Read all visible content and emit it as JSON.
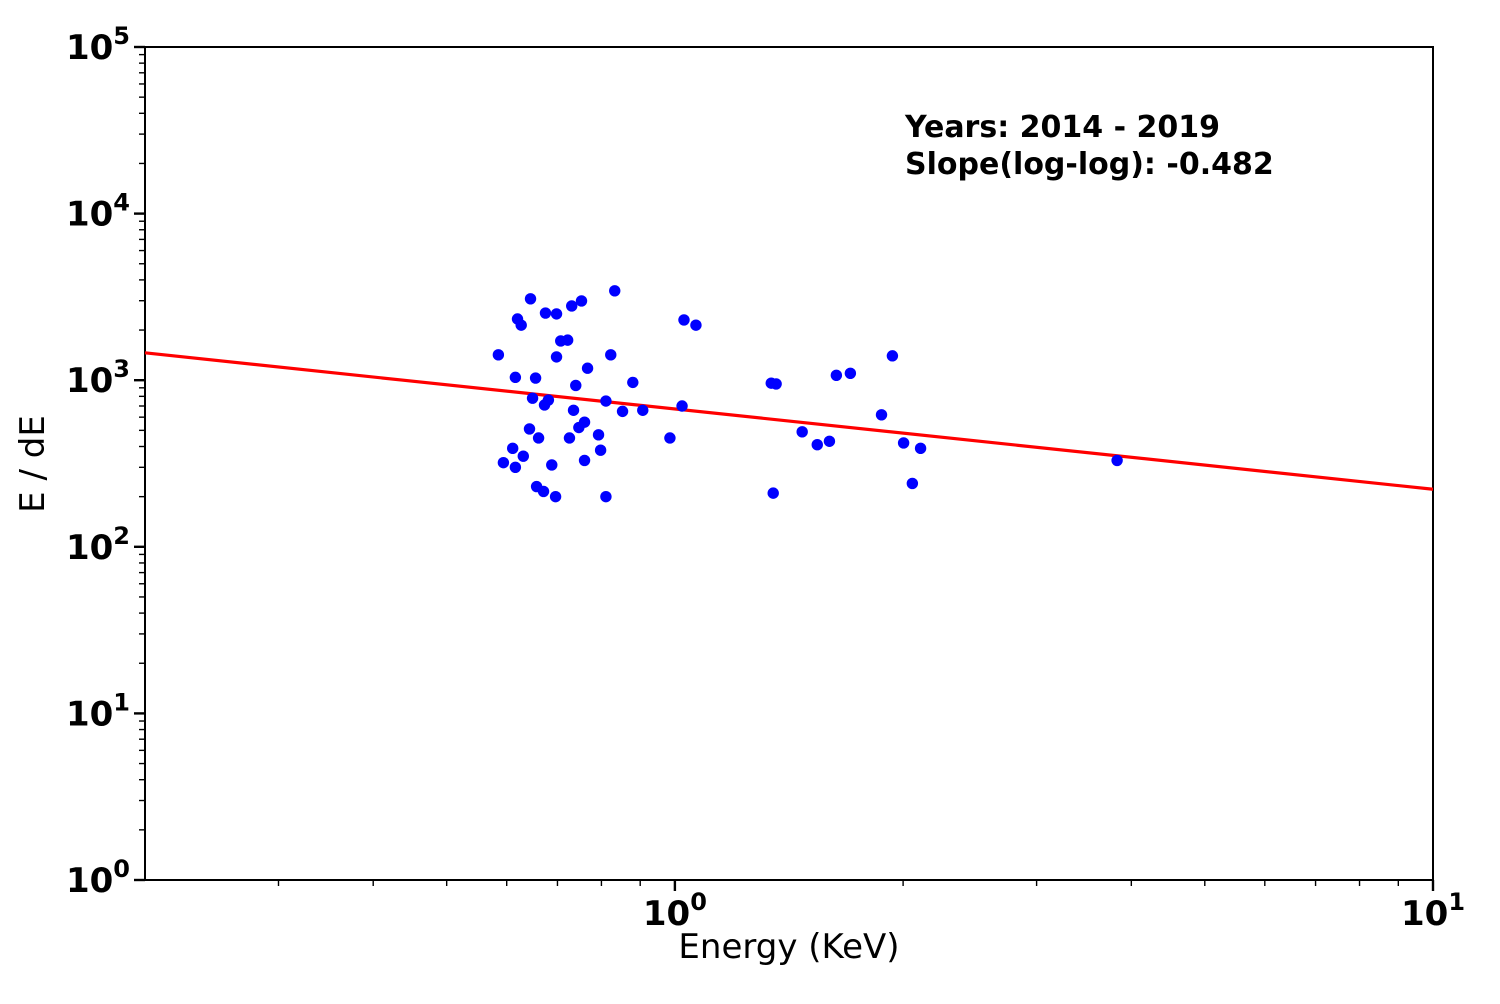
{
  "figure": {
    "background": "#ffffff"
  },
  "chart_data": {
    "type": "scatter",
    "title": "",
    "xlabel": "Energy (KeV)",
    "ylabel": "E / dE",
    "x_scale": "log",
    "y_scale": "log",
    "xlim": [
      0.2,
      10
    ],
    "ylim": [
      1,
      100000
    ],
    "grid": false,
    "legend_position": "none",
    "marker_color": "#0000ff",
    "fit_line_color": "#ff0000",
    "axis_color": "#000000",
    "x_major_ticks": [
      1,
      10
    ],
    "y_major_ticks": [
      1,
      10,
      100,
      1000,
      10000,
      100000
    ],
    "annotation": {
      "line1": "Years: 2014 - 2019",
      "line2": "Slope(log-log): -0.482"
    },
    "fit_line": {
      "slope_loglog": -0.482,
      "value_at_1kev": 672,
      "x_start": 0.2,
      "x_end": 10
    },
    "points": [
      [
        0.833,
        3440
      ],
      [
        0.645,
        3080
      ],
      [
        0.753,
        2990
      ],
      [
        0.731,
        2790
      ],
      [
        0.675,
        2530
      ],
      [
        0.698,
        2500
      ],
      [
        0.62,
        2330
      ],
      [
        0.627,
        2140
      ],
      [
        1.028,
        2300
      ],
      [
        1.066,
        2140
      ],
      [
        0.707,
        1720
      ],
      [
        0.722,
        1740
      ],
      [
        0.585,
        1420
      ],
      [
        0.698,
        1380
      ],
      [
        0.823,
        1420
      ],
      [
        0.767,
        1180
      ],
      [
        0.616,
        1040
      ],
      [
        0.655,
        1030
      ],
      [
        0.74,
        930
      ],
      [
        0.88,
        970
      ],
      [
        0.649,
        780
      ],
      [
        0.673,
        710
      ],
      [
        0.681,
        760
      ],
      [
        0.811,
        750
      ],
      [
        0.735,
        660
      ],
      [
        0.853,
        650
      ],
      [
        0.907,
        660
      ],
      [
        1.022,
        700
      ],
      [
        0.76,
        560
      ],
      [
        0.747,
        520
      ],
      [
        0.643,
        510
      ],
      [
        0.661,
        450
      ],
      [
        0.726,
        450
      ],
      [
        0.793,
        470
      ],
      [
        0.985,
        450
      ],
      [
        0.798,
        380
      ],
      [
        0.611,
        390
      ],
      [
        0.631,
        350
      ],
      [
        0.594,
        320
      ],
      [
        0.616,
        300
      ],
      [
        0.688,
        310
      ],
      [
        0.76,
        330
      ],
      [
        0.657,
        230
      ],
      [
        0.671,
        215
      ],
      [
        0.696,
        200
      ],
      [
        0.811,
        200
      ],
      [
        1.34,
        960
      ],
      [
        1.36,
        950
      ],
      [
        1.633,
        1070
      ],
      [
        1.704,
        1100
      ],
      [
        1.936,
        1400
      ],
      [
        1.472,
        490
      ],
      [
        1.541,
        410
      ],
      [
        1.599,
        430
      ],
      [
        2.003,
        420
      ],
      [
        2.109,
        390
      ],
      [
        1.873,
        620
      ],
      [
        1.348,
        210
      ],
      [
        2.057,
        240
      ],
      [
        3.831,
        330
      ]
    ]
  }
}
